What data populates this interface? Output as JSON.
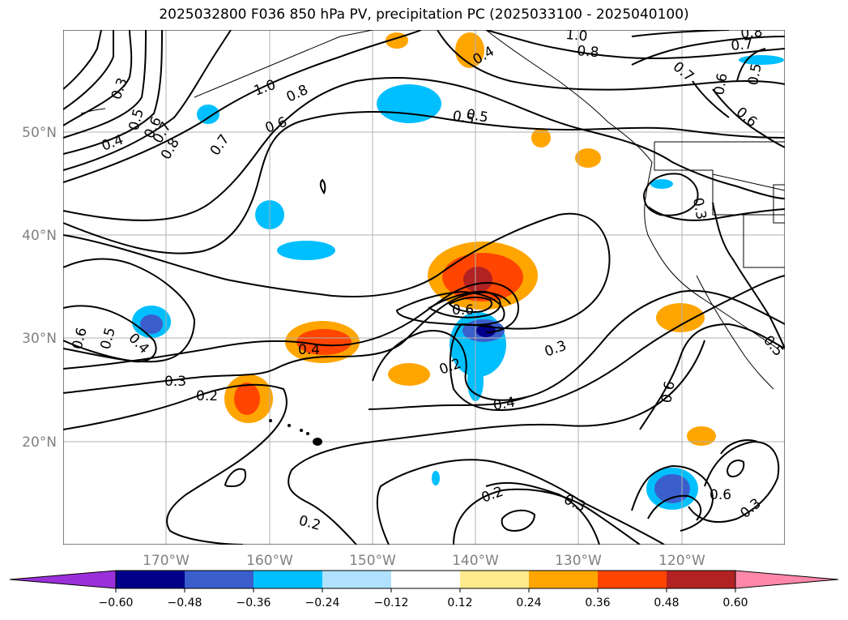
{
  "title": "2025032800 F036 850 hPa PV, precipitation PC (2025033100 - 2025040100)",
  "lat_labels": [
    "50°N",
    "40°N",
    "30°N",
    "20°N"
  ],
  "lon_labels": [
    "170°W",
    "160°W",
    "150°W",
    "140°W",
    "130°W",
    "120°W"
  ],
  "contour_labels": [
    "0.3",
    "0.5",
    "0.6",
    "0.4",
    "0.7",
    "0.8",
    "1.0",
    "0.8",
    "0.6",
    "0.7",
    "0.4",
    "0.5",
    "0.8",
    "1.0",
    "0.8",
    "0.7",
    "0.5",
    "0.6",
    "0.7",
    "0.6",
    "0.3",
    "0.4",
    "0.5",
    "0.6",
    "0.4",
    "0.3",
    "0.2",
    "0.3",
    "0.2",
    "0.4",
    "0.2",
    "0.3",
    "0.2",
    "0.6",
    "0.5",
    "0.6",
    "0.3",
    "0.6",
    "0.5",
    "0.4",
    "0.6",
    "0.4",
    "0.3",
    "0.3",
    "0.6",
    "0.5"
  ],
  "colorbar": {
    "ticks": [
      "−0.60",
      "−0.48",
      "−0.36",
      "−0.24",
      "−0.12",
      "0.12",
      "0.24",
      "0.36",
      "0.48",
      "0.60"
    ],
    "colors": [
      "#9b30d9",
      "#00008b",
      "#3a5fcd",
      "#00bfff",
      "#b0e2ff",
      "#ffffff",
      "#ffeb8c",
      "#ffa500",
      "#ff4500",
      "#b22222",
      "#ff88aa"
    ]
  }
}
